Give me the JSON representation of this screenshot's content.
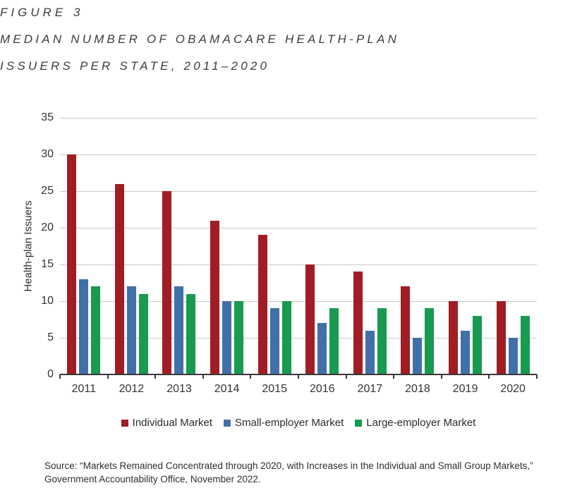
{
  "figure": {
    "label": "FIGURE 3",
    "title_lines": [
      "MEDIAN NUMBER OF OBAMACARE HEALTH-PLAN",
      "ISSUERS PER STATE, 2011–2020"
    ]
  },
  "chart_data": {
    "type": "bar",
    "title": "MEDIAN NUMBER OF OBAMACARE HEALTH-PLAN ISSUERS PER STATE, 2011–2020",
    "categories": [
      "2011",
      "2012",
      "2013",
      "2014",
      "2015",
      "2016",
      "2017",
      "2018",
      "2019",
      "2020"
    ],
    "series": [
      {
        "name": "Individual Market",
        "color": "#A01D23",
        "values": [
          30,
          26,
          25,
          21,
          19,
          15,
          14,
          12,
          10,
          10
        ]
      },
      {
        "name": "Small-employer Market",
        "color": "#4170A8",
        "values": [
          13,
          12,
          12,
          10,
          9,
          7,
          6,
          5,
          6,
          5
        ]
      },
      {
        "name": "Large-employer Market",
        "color": "#189A4F",
        "values": [
          12,
          11,
          11,
          10,
          10,
          9,
          9,
          9,
          8,
          8
        ]
      }
    ],
    "xlabel": "",
    "ylabel": "Health-plan Issuers",
    "ylim": [
      0,
      35
    ],
    "yticks": [
      0,
      5,
      10,
      15,
      20,
      25,
      30,
      35
    ],
    "grid": true,
    "legend_position": "bottom"
  },
  "source": {
    "lines": [
      "Source: “Markets Remained Concentrated through 2020, with Increases in the Individual and Small Group Markets,”",
      "Government Accountability Office, November 2022."
    ]
  },
  "colors": {
    "gridline": "#C9C9C9",
    "axis": "#3A3A3A",
    "title_text": "#3C3C3C"
  }
}
